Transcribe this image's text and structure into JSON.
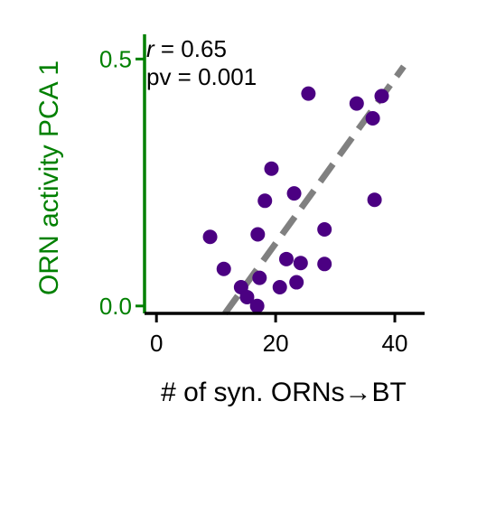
{
  "colors": {
    "points": "#4b0082",
    "fit_line": "#808080",
    "y_axis": "#008000",
    "x_axis": "#000000",
    "text": "#000000"
  },
  "chart_data": {
    "type": "scatter",
    "xlabel": "# of syn. ORNs→BT",
    "ylabel": "ORN activity PCA 1",
    "xlim": [
      -2,
      45
    ],
    "ylim": [
      -0.015,
      0.55
    ],
    "x_ticks": [
      0,
      20,
      40
    ],
    "x_tick_labels": [
      "0",
      "20",
      "40"
    ],
    "y_ticks": [
      0.0,
      0.5
    ],
    "y_tick_labels": [
      "0.0",
      "0.5"
    ],
    "grid": false,
    "annotation": {
      "r_symbol": "r",
      "r_value": " = 0.65",
      "pv_text": "pv = 0.001"
    },
    "fit_line": {
      "x": [
        11.5,
        41.5
      ],
      "y": [
        -0.015,
        0.485
      ]
    },
    "points": [
      {
        "x": 9,
        "y": 0.14
      },
      {
        "x": 11.3,
        "y": 0.075
      },
      {
        "x": 14.2,
        "y": 0.038
      },
      {
        "x": 15.2,
        "y": 0.018
      },
      {
        "x": 16.9,
        "y": 0.0
      },
      {
        "x": 17,
        "y": 0.145
      },
      {
        "x": 17.3,
        "y": 0.057
      },
      {
        "x": 18.2,
        "y": 0.213
      },
      {
        "x": 19.3,
        "y": 0.278
      },
      {
        "x": 20.7,
        "y": 0.038
      },
      {
        "x": 21.8,
        "y": 0.095
      },
      {
        "x": 23.1,
        "y": 0.228
      },
      {
        "x": 23.5,
        "y": 0.048
      },
      {
        "x": 24.2,
        "y": 0.087
      },
      {
        "x": 25.5,
        "y": 0.43
      },
      {
        "x": 28.2,
        "y": 0.155
      },
      {
        "x": 28.2,
        "y": 0.085
      },
      {
        "x": 33.6,
        "y": 0.41
      },
      {
        "x": 36.3,
        "y": 0.38
      },
      {
        "x": 36.6,
        "y": 0.215
      },
      {
        "x": 37.8,
        "y": 0.425
      }
    ]
  }
}
